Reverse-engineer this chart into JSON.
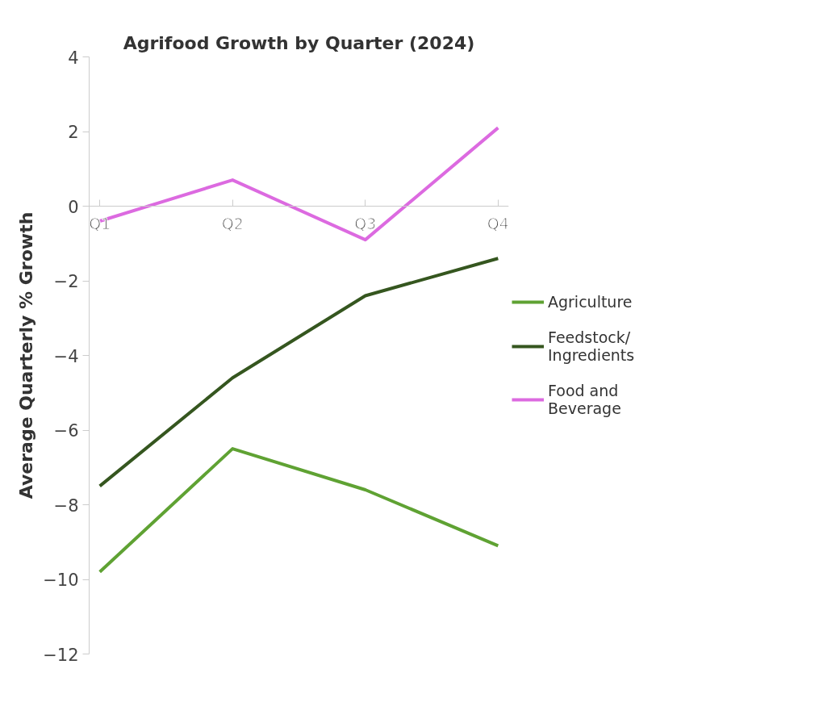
{
  "chart_data": {
    "type": "line",
    "title": "Agrifood Growth by Quarter (2024)",
    "ylabel": "Average Quarterly % Growth",
    "categories": [
      "Q1",
      "Q2",
      "Q3",
      "Q4"
    ],
    "series": [
      {
        "name": "Agriculture",
        "color": "#5fa233",
        "values": [
          -9.8,
          -6.5,
          -7.6,
          -9.1
        ]
      },
      {
        "name": "Feedstock/ Ingredients",
        "color": "#35561f",
        "values": [
          -7.5,
          -4.6,
          -2.4,
          -1.4
        ]
      },
      {
        "name": "Food and Beverage",
        "color": "#dc6ae0",
        "values": [
          -0.4,
          0.7,
          -0.9,
          2.1
        ]
      }
    ],
    "ylim": [
      -12,
      4
    ],
    "yticks": [
      -12,
      -10,
      -8,
      -6,
      -4,
      -2,
      0,
      2,
      4
    ],
    "grid": false,
    "legend": "right",
    "marker": "none",
    "line_style": "solid"
  }
}
